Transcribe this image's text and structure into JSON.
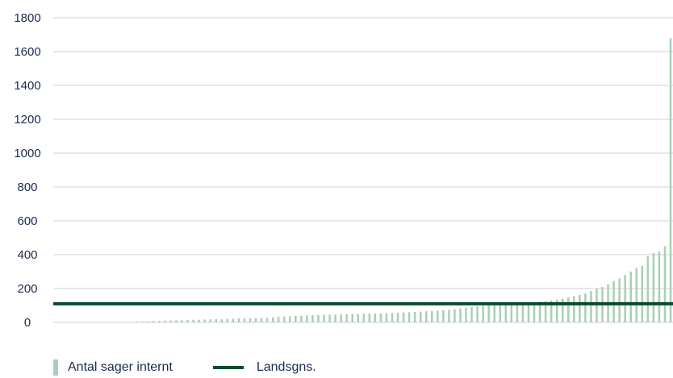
{
  "chart_data": {
    "type": "bar",
    "title": "",
    "xlabel": "",
    "ylabel": "",
    "ylim": [
      0,
      1800
    ],
    "yticks": [
      0,
      200,
      400,
      600,
      800,
      1000,
      1200,
      1400,
      1600,
      1800
    ],
    "grid": true,
    "legend_position": "bottom-left",
    "series": [
      {
        "name": "Antal sager internt",
        "kind": "bar",
        "color": "#a9cfb6",
        "values": [
          1,
          1,
          2,
          3,
          4,
          5,
          6,
          8,
          9,
          10,
          11,
          12,
          13,
          14,
          15,
          16,
          17,
          18,
          19,
          20,
          21,
          22,
          23,
          24,
          25,
          26,
          27,
          28,
          30,
          32,
          34,
          36,
          38,
          40,
          41,
          42,
          43,
          44,
          45,
          46,
          47,
          48,
          49,
          50,
          51,
          52,
          53,
          54,
          55,
          56,
          57,
          58,
          60,
          62,
          64,
          66,
          68,
          70,
          72,
          75,
          78,
          82,
          86,
          90,
          95,
          98,
          100,
          102,
          104,
          106,
          108,
          110,
          112,
          115,
          118,
          122,
          126,
          130,
          135,
          140,
          148,
          155,
          162,
          170,
          185,
          200,
          210,
          225,
          245,
          260,
          280,
          300,
          320,
          335,
          390,
          410,
          420,
          450,
          1680
        ]
      },
      {
        "name": "Landsgns.",
        "kind": "line",
        "color": "#0a4a2a",
        "value": 110
      }
    ]
  }
}
